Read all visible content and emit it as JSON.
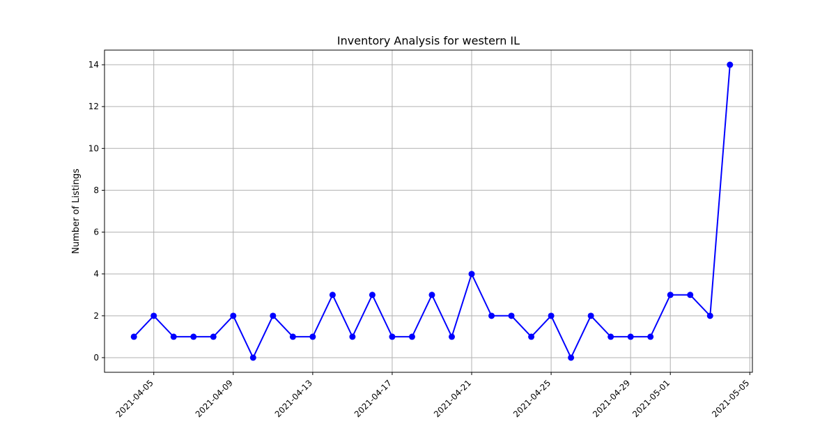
{
  "chart_data": {
    "type": "line",
    "title": "Inventory Analysis for western IL",
    "xlabel": "",
    "ylabel": "Number of Listings",
    "grid": true,
    "legend": "none",
    "line_color": "#0000ff",
    "marker": "circle",
    "xlim": [
      "2021-04-02",
      "2021-05-05"
    ],
    "ylim": [
      -0.7,
      14.7
    ],
    "x_ticks": [
      "2021-04-05",
      "2021-04-09",
      "2021-04-13",
      "2021-04-17",
      "2021-04-21",
      "2021-04-25",
      "2021-04-29",
      "2021-05-01",
      "2021-05-05"
    ],
    "y_ticks": [
      0,
      2,
      4,
      6,
      8,
      10,
      12,
      14
    ],
    "x": [
      "2021-04-04",
      "2021-04-05",
      "2021-04-06",
      "2021-04-07",
      "2021-04-08",
      "2021-04-09",
      "2021-04-10",
      "2021-04-11",
      "2021-04-12",
      "2021-04-13",
      "2021-04-14",
      "2021-04-15",
      "2021-04-16",
      "2021-04-17",
      "2021-04-18",
      "2021-04-19",
      "2021-04-20",
      "2021-04-21",
      "2021-04-22",
      "2021-04-23",
      "2021-04-24",
      "2021-04-25",
      "2021-04-26",
      "2021-04-27",
      "2021-04-28",
      "2021-04-29",
      "2021-04-30",
      "2021-05-01",
      "2021-05-02",
      "2021-05-03",
      "2021-05-04"
    ],
    "y": [
      1,
      2,
      1,
      1,
      1,
      2,
      0,
      2,
      1,
      1,
      3,
      1,
      3,
      1,
      1,
      3,
      1,
      4,
      2,
      2,
      1,
      2,
      0,
      2,
      1,
      1,
      1,
      3,
      3,
      2,
      14
    ]
  }
}
